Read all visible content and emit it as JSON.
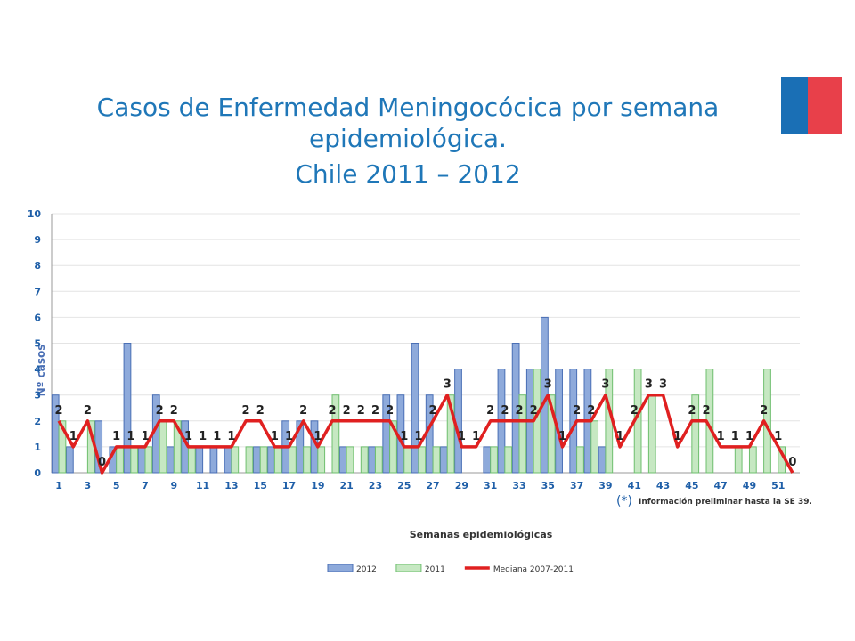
{
  "chart_data": {
    "type": "bar",
    "title_lines": [
      "Casos de Enfermedad Meningocócica por semana",
      "epidemiológica.",
      "Chile 2011 – 2012"
    ],
    "y_label": "Nº casos",
    "x_label": "Semanas epidemiológicas",
    "note_mark": "(*)",
    "note": "Información preliminar hasta la SE 39.",
    "categories": [
      "1",
      null,
      "3",
      null,
      "5",
      null,
      "7",
      null,
      "9",
      null,
      "11",
      null,
      "13",
      null,
      "15",
      null,
      "17",
      null,
      "19",
      null,
      "21",
      null,
      "23",
      null,
      "25",
      null,
      "27",
      null,
      "29",
      null,
      "31",
      null,
      "33",
      null,
      "35",
      null,
      "37",
      null,
      "39",
      null,
      "41",
      null,
      "43",
      null,
      "45",
      null,
      "47",
      null,
      "49",
      null,
      "51",
      null
    ],
    "series": [
      {
        "name": "2012",
        "color": "#8eaadb",
        "values": [
          3,
          1,
          0,
          2,
          1,
          5,
          1,
          3,
          1,
          2,
          1,
          1,
          1,
          0,
          1,
          1,
          2,
          2,
          2,
          0,
          1,
          0,
          1,
          3,
          3,
          5,
          3,
          1,
          4,
          0,
          1,
          4,
          5,
          4,
          6,
          4,
          4,
          4,
          1,
          null,
          null,
          null,
          null,
          null,
          null,
          null,
          null,
          null,
          null,
          null,
          null,
          null
        ]
      },
      {
        "name": "2011",
        "color": "#c6e8c2",
        "values": [
          2,
          0,
          2,
          0,
          1,
          1,
          1,
          2,
          2,
          1,
          0,
          0,
          1,
          1,
          1,
          1,
          1,
          1,
          1,
          3,
          1,
          1,
          1,
          2,
          1,
          1,
          1,
          3,
          0,
          0,
          1,
          1,
          3,
          4,
          3,
          0,
          1,
          2,
          4,
          0,
          4,
          3,
          0,
          0,
          3,
          4,
          0,
          1,
          1,
          4,
          1,
          0
        ]
      },
      {
        "name": "Mediana 2007-2011",
        "color": "#e02020",
        "type": "line",
        "values": [
          2,
          1,
          2,
          0,
          1,
          1,
          1,
          2,
          2,
          1,
          1,
          1,
          1,
          2,
          2,
          1,
          1,
          2,
          1,
          2,
          2,
          2,
          2,
          2,
          1,
          1,
          2,
          3,
          1,
          1,
          2,
          2,
          2,
          2,
          3,
          1,
          2,
          2,
          3,
          1,
          2,
          3,
          3,
          1,
          2,
          2,
          1,
          1,
          1,
          2,
          1,
          0
        ]
      }
    ],
    "ylim": [
      0,
      10
    ],
    "yticks": [
      0,
      1,
      2,
      3,
      4,
      5,
      6,
      7,
      8,
      9,
      10
    ],
    "grid": true,
    "legend": "bottom"
  }
}
